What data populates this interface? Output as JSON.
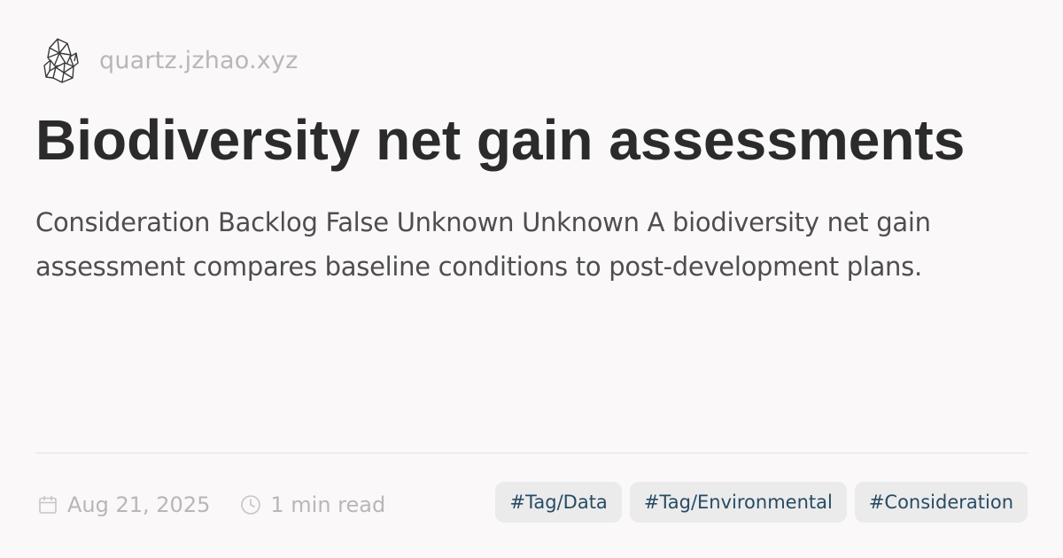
{
  "site": {
    "logo_icon": "crystal-logo-icon",
    "name": "quartz.jzhao.xyz"
  },
  "page": {
    "title": "Biodiversity net gain assessments",
    "description": "Consideration Backlog False Unknown Unknown A biodiversity net gain assessment compares baseline conditions to post-development plans."
  },
  "meta": {
    "date_icon": "calendar-icon",
    "date": "Aug 21, 2025",
    "reading_time_icon": "clock-icon",
    "reading_time": "1 min read"
  },
  "tags": [
    {
      "label": "#Tag/Data"
    },
    {
      "label": "#Tag/Environmental"
    },
    {
      "label": "#Consideration"
    }
  ],
  "colors": {
    "background": "#faf8f8",
    "title": "#2b2b2b",
    "description": "#4e4e4e",
    "muted": "#b9b6b6",
    "tag_background": "#ebebec",
    "tag_text": "#284b63"
  }
}
